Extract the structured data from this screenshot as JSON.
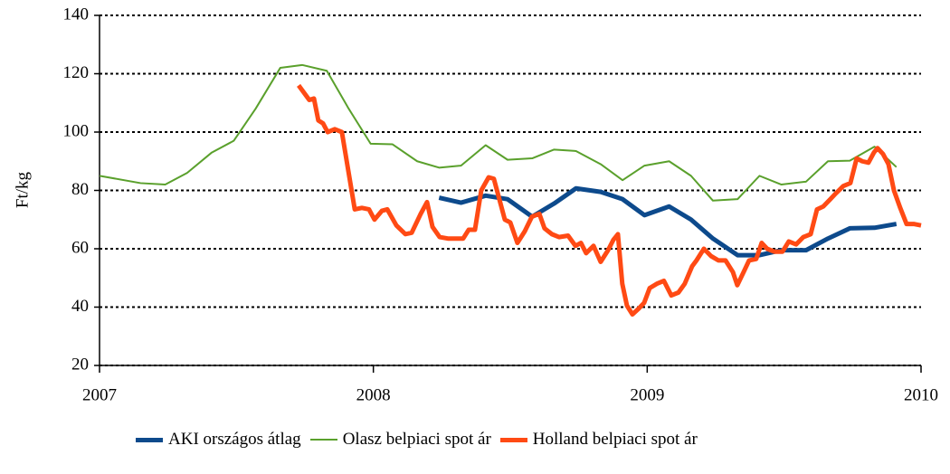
{
  "chart_data": {
    "type": "line",
    "ylabel": "Ft/kg",
    "xlim": [
      2007,
      2010
    ],
    "xticks": [
      2007,
      2008,
      2009,
      2010
    ],
    "ylim": [
      20,
      140
    ],
    "yticks": [
      20,
      40,
      60,
      80,
      100,
      120,
      140
    ],
    "grid": true,
    "legend": "bottom",
    "series": [
      {
        "name": "AKI országos átlag",
        "color": "#0d4a8c",
        "width": 5,
        "x": [
          2008.24,
          2008.32,
          2008.41,
          2008.49,
          2008.58,
          2008.66,
          2008.74,
          2008.83,
          2008.91,
          2008.99,
          2009.08,
          2009.16,
          2009.24,
          2009.33,
          2009.41,
          2009.49,
          2009.58,
          2009.66,
          2009.74,
          2009.83,
          2009.91
        ],
        "values": [
          77.5,
          75.8,
          78.2,
          77,
          71,
          75.5,
          80.7,
          79.5,
          77,
          71.5,
          74.5,
          70,
          63.5,
          57.8,
          57.8,
          59.5,
          59.5,
          63.5,
          67,
          67.2,
          68.5
        ]
      },
      {
        "name": "Olasz belpiaci spot ár",
        "color": "#5aa02c",
        "width": 2,
        "x": [
          2007.0,
          2007.15,
          2007.24,
          2007.32,
          2007.41,
          2007.49,
          2007.57,
          2007.66,
          2007.74,
          2007.83,
          2007.91,
          2007.99,
          2008.07,
          2008.16,
          2008.24,
          2008.32,
          2008.41,
          2008.49,
          2008.58,
          2008.66,
          2008.74,
          2008.83,
          2008.91,
          2008.99,
          2009.08,
          2009.16,
          2009.24,
          2009.33,
          2009.41,
          2009.49,
          2009.58,
          2009.66,
          2009.74,
          2009.83,
          2009.91
        ],
        "values": [
          85,
          82.5,
          82,
          86,
          93,
          97,
          108,
          122,
          123,
          121,
          108,
          96,
          95.8,
          90,
          87.8,
          88.5,
          95.5,
          90.5,
          91,
          94,
          93.5,
          89,
          83.5,
          88.5,
          90,
          85,
          76.5,
          77,
          85,
          82,
          83,
          90,
          90.2,
          95,
          88
        ]
      },
      {
        "name": "Holland belpiaci spot ár",
        "color": "#ff4a14",
        "width": 5,
        "x": [
          2007.727,
          2007.766,
          2007.783,
          2007.799,
          2007.816,
          2007.833,
          2007.859,
          2007.885,
          2007.932,
          2007.958,
          2007.984,
          2008.004,
          2008.031,
          2008.051,
          2008.084,
          2008.117,
          2008.14,
          2008.173,
          2008.196,
          2008.216,
          2008.242,
          2008.272,
          2008.298,
          2008.328,
          2008.348,
          2008.371,
          2008.394,
          2008.421,
          2008.44,
          2008.46,
          2008.48,
          2008.5,
          2008.526,
          2008.553,
          2008.579,
          2008.606,
          2008.625,
          2008.652,
          2008.678,
          2008.711,
          2008.738,
          2008.758,
          2008.777,
          2008.804,
          2008.83,
          2008.857,
          2008.876,
          2008.893,
          2008.909,
          2008.926,
          2008.946,
          2008.969,
          2008.989,
          2009.009,
          2009.035,
          2009.061,
          2009.088,
          2009.114,
          2009.137,
          2009.164,
          2009.18,
          2009.207,
          2009.233,
          2009.26,
          2009.286,
          2009.313,
          2009.329,
          2009.352,
          2009.372,
          2009.398,
          2009.418,
          2009.438,
          2009.464,
          2009.494,
          2009.517,
          2009.544,
          2009.57,
          2009.597,
          2009.62,
          2009.643,
          2009.669,
          2009.689,
          2009.716,
          2009.742,
          2009.765,
          2009.785,
          2009.808,
          2009.828,
          2009.841,
          2009.861,
          2009.881,
          2009.901,
          2009.924,
          2009.947,
          2009.973,
          2010.0
        ],
        "values": [
          116,
          111,
          111.5,
          104,
          103,
          100,
          101,
          100,
          73.5,
          74,
          73.5,
          70,
          73,
          73.5,
          68,
          65,
          65.5,
          72,
          76,
          67.5,
          64,
          63.5,
          63.5,
          63.5,
          66.5,
          66.5,
          80,
          84.5,
          84,
          77,
          70,
          69,
          62,
          66,
          71,
          72,
          67,
          65,
          64,
          64.5,
          61,
          62,
          58.5,
          61,
          55.5,
          59.5,
          63,
          65,
          48,
          40.5,
          37.5,
          39.5,
          41.5,
          46.5,
          48,
          49,
          44,
          45,
          48,
          54,
          56,
          60,
          57.5,
          56,
          56,
          52,
          47.5,
          52,
          56,
          56.5,
          62,
          60,
          59,
          59,
          62.5,
          61.5,
          64,
          65,
          73.5,
          74.5,
          77,
          79,
          81.5,
          82.5,
          91,
          90,
          89.5,
          93,
          94.5,
          92.5,
          89,
          80,
          74,
          68.5,
          68.5,
          68
        ]
      }
    ]
  }
}
